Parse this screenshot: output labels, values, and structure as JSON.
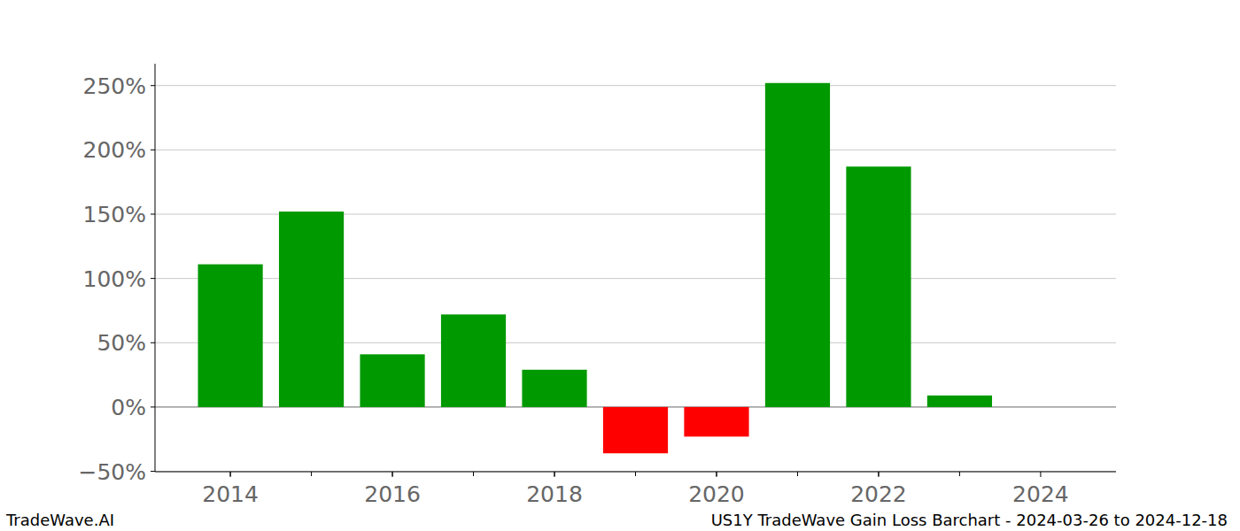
{
  "chart_data": {
    "type": "bar",
    "title": "US1Y TradeWave Gain Loss Barchart - 2024-03-26 to 2024-12-18",
    "source": "TradeWave.AI",
    "x": [
      2014,
      2015,
      2016,
      2017,
      2018,
      2019,
      2020,
      2021,
      2022,
      2023
    ],
    "values": [
      111,
      152,
      41,
      72,
      29,
      -36,
      -23,
      252,
      187,
      9
    ],
    "colors": [
      "#009900",
      "#009900",
      "#009900",
      "#009900",
      "#009900",
      "#ff0000",
      "#ff0000",
      "#009900",
      "#009900",
      "#009900"
    ],
    "xlim": [
      2013.07,
      2024.93
    ],
    "xticks": [
      2014,
      2016,
      2018,
      2020,
      2022,
      2024
    ],
    "ylim": [
      -50.3,
      267
    ],
    "yticks": [
      {
        "value": -50,
        "label": "−50%"
      },
      {
        "value": 0,
        "label": "0%"
      },
      {
        "value": 50,
        "label": "50%"
      },
      {
        "value": 100,
        "label": "100%"
      },
      {
        "value": 150,
        "label": "150%"
      },
      {
        "value": 200,
        "label": "200%"
      },
      {
        "value": 250,
        "label": "250%"
      }
    ],
    "grid": true
  }
}
